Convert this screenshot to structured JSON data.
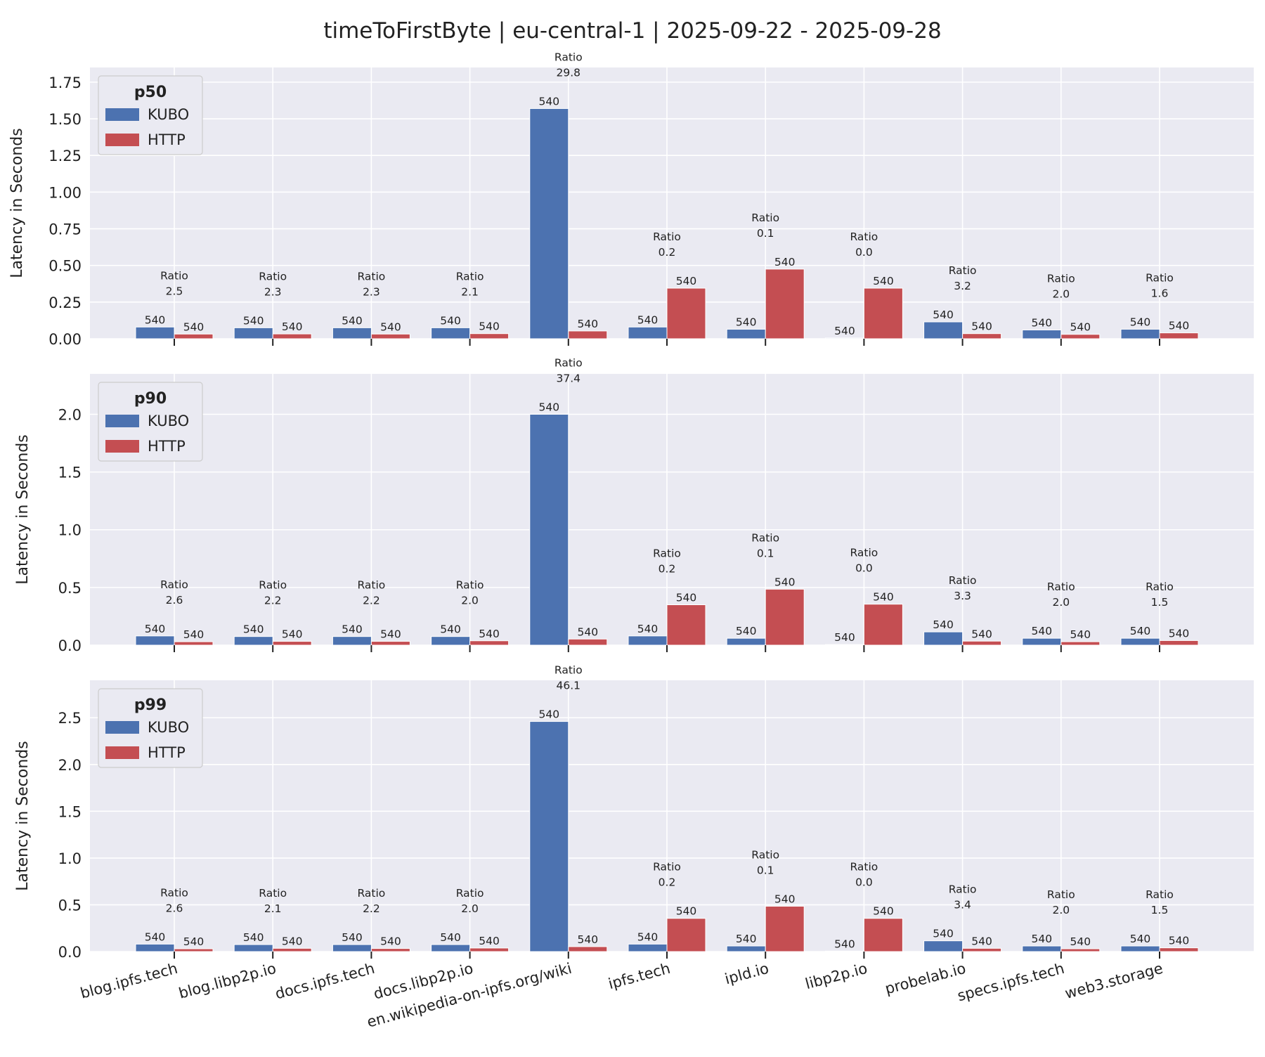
{
  "figure": {
    "title": "timeToFirstByte | eu-central-1 | 2025-09-22 - 2025-09-28"
  },
  "colors": {
    "kubo": "#4c72b0",
    "http": "#c44e52",
    "panel_bg": "#eaeaf2",
    "grid": "#ffffff"
  },
  "chart_data": [
    {
      "type": "bar",
      "title": "",
      "legend_title": "p50",
      "legend_position": "top-left",
      "ylabel": "Latency in Seconds",
      "ylim": [
        0,
        1.85
      ],
      "yticks": [
        0,
        0.25,
        0.5,
        0.75,
        1.0,
        1.25,
        1.5,
        1.75
      ],
      "ytick_labels": [
        "0.00",
        "0.25",
        "0.50",
        "0.75",
        "1.00",
        "1.25",
        "1.50",
        "1.75"
      ],
      "grid": true,
      "categories": [
        "blog.ipfs.tech",
        "blog.libp2p.io",
        "docs.ipfs.tech",
        "docs.libp2p.io",
        "en.wikipedia-on-ipfs.org/wiki",
        "ipfs.tech",
        "ipld.io",
        "libp2p.io",
        "probelab.io",
        "specs.ipfs.tech",
        "web3.storage"
      ],
      "series": [
        {
          "name": "KUBO",
          "values": [
            0.08,
            0.075,
            0.075,
            0.075,
            1.57,
            0.08,
            0.065,
            0.005,
            0.115,
            0.06,
            0.065
          ],
          "counts": [
            "540",
            "540",
            "540",
            "540",
            "540",
            "540",
            "540",
            "540",
            "540",
            "540",
            "540"
          ]
        },
        {
          "name": "HTTP",
          "values": [
            0.032,
            0.033,
            0.032,
            0.035,
            0.053,
            0.345,
            0.475,
            0.345,
            0.035,
            0.03,
            0.04
          ],
          "counts": [
            "540",
            "540",
            "540",
            "540",
            "540",
            "540",
            "540",
            "540",
            "540",
            "540",
            "540"
          ]
        }
      ],
      "ratio_label": "Ratio",
      "ratios": [
        "2.5",
        "2.3",
        "2.3",
        "2.1",
        "29.8",
        "0.2",
        "0.1",
        "0.0",
        "3.2",
        "2.0",
        "1.6"
      ]
    },
    {
      "type": "bar",
      "title": "",
      "legend_title": "p90",
      "legend_position": "top-left",
      "ylabel": "Latency in Seconds",
      "ylim": [
        0,
        2.35
      ],
      "yticks": [
        0,
        0.5,
        1.0,
        1.5,
        2.0
      ],
      "ytick_labels": [
        "0.0",
        "0.5",
        "1.0",
        "1.5",
        "2.0"
      ],
      "grid": true,
      "categories": [
        "blog.ipfs.tech",
        "blog.libp2p.io",
        "docs.ipfs.tech",
        "docs.libp2p.io",
        "en.wikipedia-on-ipfs.org/wiki",
        "ipfs.tech",
        "ipld.io",
        "libp2p.io",
        "probelab.io",
        "specs.ipfs.tech",
        "web3.storage"
      ],
      "series": [
        {
          "name": "KUBO",
          "values": [
            0.08,
            0.075,
            0.075,
            0.075,
            2.0,
            0.08,
            0.06,
            0.005,
            0.115,
            0.06,
            0.06
          ],
          "counts": [
            "540",
            "540",
            "540",
            "540",
            "540",
            "540",
            "540",
            "540",
            "540",
            "540",
            "540"
          ]
        },
        {
          "name": "HTTP",
          "values": [
            0.03,
            0.033,
            0.033,
            0.038,
            0.053,
            0.35,
            0.485,
            0.355,
            0.035,
            0.03,
            0.04
          ],
          "counts": [
            "540",
            "540",
            "540",
            "540",
            "540",
            "540",
            "540",
            "540",
            "540",
            "540",
            "540"
          ]
        }
      ],
      "ratio_label": "Ratio",
      "ratios": [
        "2.6",
        "2.2",
        "2.2",
        "2.0",
        "37.4",
        "0.2",
        "0.1",
        "0.0",
        "3.3",
        "2.0",
        "1.5"
      ]
    },
    {
      "type": "bar",
      "title": "",
      "legend_title": "p99",
      "legend_position": "top-left",
      "ylabel": "Latency in Seconds",
      "ylim": [
        0,
        2.9
      ],
      "yticks": [
        0,
        0.5,
        1.0,
        1.5,
        2.0,
        2.5
      ],
      "ytick_labels": [
        "0.0",
        "0.5",
        "1.0",
        "1.5",
        "2.0",
        "2.5"
      ],
      "grid": true,
      "categories": [
        "blog.ipfs.tech",
        "blog.libp2p.io",
        "docs.ipfs.tech",
        "docs.libp2p.io",
        "en.wikipedia-on-ipfs.org/wiki",
        "ipfs.tech",
        "ipld.io",
        "libp2p.io",
        "probelab.io",
        "specs.ipfs.tech",
        "web3.storage"
      ],
      "series": [
        {
          "name": "KUBO",
          "values": [
            0.08,
            0.075,
            0.075,
            0.075,
            2.46,
            0.08,
            0.06,
            0.005,
            0.115,
            0.06,
            0.06
          ],
          "counts": [
            "540",
            "540",
            "540",
            "540",
            "540",
            "540",
            "540",
            "540",
            "540",
            "540",
            "540"
          ]
        },
        {
          "name": "HTTP",
          "values": [
            0.03,
            0.035,
            0.033,
            0.038,
            0.053,
            0.355,
            0.485,
            0.355,
            0.035,
            0.03,
            0.04
          ],
          "counts": [
            "540",
            "540",
            "540",
            "540",
            "540",
            "540",
            "540",
            "540",
            "540",
            "540",
            "540"
          ]
        }
      ],
      "ratio_label": "Ratio",
      "ratios": [
        "2.6",
        "2.1",
        "2.2",
        "2.0",
        "46.1",
        "0.2",
        "0.1",
        "0.0",
        "3.4",
        "2.0",
        "1.5"
      ]
    }
  ]
}
